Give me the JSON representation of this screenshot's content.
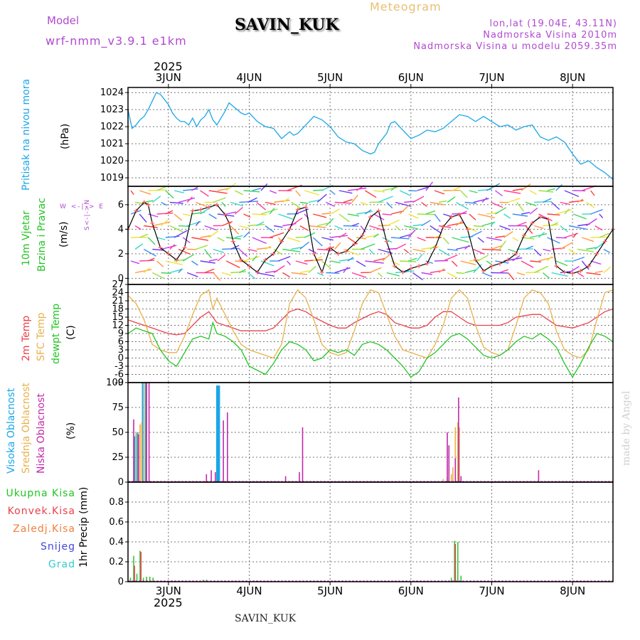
{
  "header": {
    "model_label": "Model",
    "model_name": "wrf-nmm_v3.9.1 e1km",
    "station": "SAVIN_KUK",
    "title": "Meteogram",
    "lonlat": "lon,lat (19.04E, 43.11N)",
    "elevation": "Nadmorska Visina 2010m",
    "model_elevation": "Nadmorska Visina u modelu 2059.35m",
    "year_top": "2025",
    "year_bottom": "2025",
    "footer_station": "SAVIN_KUK",
    "credit": "made by Angel"
  },
  "colors": {
    "pressure": "#1aa7e8",
    "temp2m": "#e8414a",
    "sfc_temp": "#e8b14a",
    "dewpt": "#22c422",
    "wind_speed": "#000000",
    "wind_dir": "#ff5a5a",
    "high_cloud": "#1aa7e8",
    "mid_cloud": "#e8b14a",
    "low_cloud": "#c02aa8",
    "total_precip": "#3cc23c",
    "conv_precip": "#e8414a",
    "freezing_precip": "#f0803c",
    "snow": "#4444dd",
    "hail": "#33cccc",
    "label_purple": "#b04ad0"
  },
  "panels": {
    "pressure": {
      "label": "Pritisak na nivou mora",
      "unit": "(hPa)"
    },
    "wind": {
      "label1": "10m Vjetar",
      "label2": "Brzina i Pravac",
      "unit": "(m/s)",
      "compass": "W <-|-> E",
      "compass_ns": "S<-|->N"
    },
    "temp": {
      "label1": "2m Temp",
      "label2": "SFC Temp",
      "label3": "dewpt Temp",
      "unit": "(C)"
    },
    "cloud": {
      "label1": "Visoka Oblacnost",
      "label2": "Srednja Oblacnost",
      "label3": "Niska Oblacnost",
      "unit": "(%)"
    },
    "precip": {
      "unit": "1hr Precip (mm)",
      "legend": [
        "Ukupna Kisa",
        "Konvek.Kisa",
        "Zaledj.Kisa",
        "Snijeg",
        "Grad"
      ]
    }
  },
  "chart_data": [
    {
      "type": "line",
      "title": "",
      "ylabel": "(hPa)",
      "x_unit": "day (June 2025)",
      "xlim": [
        2.5,
        8.5
      ],
      "x_ticks": [
        3,
        4,
        5,
        6,
        7,
        8
      ],
      "x_tick_labels": [
        "3JUN",
        "4JUN",
        "5JUN",
        "6JUN",
        "7JUN",
        "8JUN"
      ],
      "ylim": [
        1018.5,
        1024.3
      ],
      "y_ticks": [
        1019,
        1020,
        1021,
        1022,
        1023,
        1024
      ],
      "grid": true,
      "series": [
        {
          "name": "Pritisak na nivou mora",
          "x": [
            2.5,
            2.55,
            2.6,
            2.65,
            2.7,
            2.75,
            2.8,
            2.85,
            2.9,
            2.95,
            3.0,
            3.05,
            3.1,
            3.15,
            3.2,
            3.25,
            3.3,
            3.35,
            3.4,
            3.45,
            3.5,
            3.55,
            3.6,
            3.65,
            3.7,
            3.75,
            3.8,
            3.85,
            3.9,
            3.95,
            4.0,
            4.1,
            4.2,
            4.3,
            4.4,
            4.5,
            4.55,
            4.6,
            4.7,
            4.8,
            4.9,
            5.0,
            5.1,
            5.2,
            5.3,
            5.4,
            5.5,
            5.55,
            5.6,
            5.7,
            5.75,
            5.8,
            5.9,
            6.0,
            6.1,
            6.2,
            6.3,
            6.4,
            6.5,
            6.6,
            6.7,
            6.8,
            6.9,
            7.0,
            7.1,
            7.2,
            7.3,
            7.4,
            7.5,
            7.6,
            7.7,
            7.8,
            7.9,
            8.0,
            8.1,
            8.2,
            8.3,
            8.4,
            8.5
          ],
          "values": [
            1023.0,
            1021.9,
            1022.1,
            1022.4,
            1022.6,
            1023.0,
            1023.5,
            1024.0,
            1023.9,
            1023.6,
            1023.3,
            1022.8,
            1022.5,
            1022.3,
            1022.3,
            1022.1,
            1022.5,
            1022.0,
            1022.4,
            1022.6,
            1023.0,
            1022.4,
            1022.1,
            1022.5,
            1022.9,
            1023.4,
            1023.2,
            1023.0,
            1022.8,
            1022.7,
            1022.8,
            1022.3,
            1022.0,
            1021.9,
            1021.3,
            1021.7,
            1021.5,
            1021.6,
            1022.1,
            1022.6,
            1022.4,
            1022.0,
            1021.4,
            1021.1,
            1021.0,
            1020.6,
            1020.4,
            1020.5,
            1021.0,
            1021.6,
            1022.2,
            1022.3,
            1021.8,
            1021.3,
            1021.5,
            1021.8,
            1021.7,
            1021.9,
            1022.3,
            1022.7,
            1022.6,
            1022.3,
            1022.6,
            1022.3,
            1022.0,
            1022.1,
            1021.8,
            1022.0,
            1022.1,
            1021.4,
            1021.2,
            1021.4,
            1021.1,
            1020.4,
            1019.8,
            1020.0,
            1019.6,
            1019.3,
            1018.9
          ]
        }
      ]
    },
    {
      "type": "line",
      "title": "",
      "ylabel": "(m/s)",
      "x_unit": "day (June 2025)",
      "xlim": [
        2.5,
        8.5
      ],
      "ylim": [
        -0.5,
        7.5
      ],
      "y_ticks": [
        0,
        2,
        4,
        6
      ],
      "grid": true,
      "series": [
        {
          "name": "Brzina",
          "x": [
            2.5,
            2.6,
            2.7,
            2.75,
            2.8,
            2.9,
            3.0,
            3.1,
            3.2,
            3.3,
            3.4,
            3.5,
            3.6,
            3.7,
            3.75,
            3.8,
            3.9,
            4.0,
            4.1,
            4.2,
            4.3,
            4.4,
            4.5,
            4.6,
            4.7,
            4.8,
            4.9,
            5.0,
            5.1,
            5.2,
            5.3,
            5.4,
            5.5,
            5.6,
            5.7,
            5.8,
            5.9,
            6.0,
            6.1,
            6.2,
            6.3,
            6.4,
            6.5,
            6.6,
            6.7,
            6.8,
            6.9,
            7.0,
            7.1,
            7.2,
            7.3,
            7.4,
            7.5,
            7.6,
            7.7,
            7.8,
            7.9,
            8.0,
            8.1,
            8.2,
            8.3,
            8.4,
            8.5
          ],
          "values": [
            4.0,
            5.5,
            6.2,
            6.0,
            4.5,
            2.5,
            2.0,
            1.5,
            2.5,
            5.5,
            5.6,
            5.8,
            6.0,
            5.2,
            4.5,
            3.0,
            1.5,
            1.0,
            0.5,
            1.5,
            2.0,
            3.0,
            4.0,
            5.6,
            5.8,
            2.0,
            0.5,
            2.5,
            2.0,
            2.2,
            2.8,
            3.5,
            5.0,
            5.5,
            3.0,
            1.0,
            0.5,
            0.8,
            1.0,
            1.2,
            2.5,
            4.2,
            5.0,
            5.2,
            4.0,
            1.5,
            0.6,
            1.0,
            1.2,
            1.5,
            2.0,
            3.5,
            4.5,
            5.0,
            4.8,
            1.0,
            0.5,
            0.4,
            0.6,
            1.0,
            2.0,
            3.0,
            4.0
          ]
        }
      ]
    },
    {
      "type": "line",
      "title": "",
      "ylabel": "(C)",
      "x_unit": "day (June 2025)",
      "xlim": [
        2.5,
        8.5
      ],
      "ylim": [
        -9,
        27
      ],
      "y_ticks": [
        -9,
        -6,
        -3,
        0,
        3,
        6,
        9,
        12,
        15,
        18,
        21,
        24,
        27
      ],
      "grid": true,
      "series": [
        {
          "name": "2m Temp",
          "x": [
            2.5,
            2.6,
            2.7,
            2.8,
            2.9,
            3.0,
            3.1,
            3.2,
            3.3,
            3.4,
            3.5,
            3.55,
            3.6,
            3.7,
            3.8,
            3.9,
            4.0,
            4.2,
            4.3,
            4.4,
            4.5,
            4.6,
            4.7,
            4.8,
            5.0,
            5.1,
            5.2,
            5.3,
            5.5,
            5.6,
            5.7,
            5.8,
            6.0,
            6.1,
            6.2,
            6.3,
            6.4,
            6.5,
            6.6,
            6.7,
            6.8,
            7.0,
            7.1,
            7.2,
            7.3,
            7.5,
            7.6,
            7.7,
            7.8,
            8.0,
            8.1,
            8.2,
            8.3,
            8.4,
            8.5
          ],
          "values": [
            14,
            13,
            12,
            11,
            10,
            9,
            8.5,
            9,
            12,
            15,
            17,
            15,
            13,
            12,
            11,
            10,
            10,
            10,
            11,
            14,
            17,
            18,
            17,
            15,
            12,
            11,
            11,
            13,
            16,
            17,
            16,
            13,
            11,
            11,
            12,
            15,
            17,
            17,
            15,
            13,
            12,
            12,
            12,
            13,
            15,
            16,
            16,
            14,
            12,
            11,
            12,
            13,
            15,
            17,
            18
          ]
        },
        {
          "name": "SFC Temp",
          "x": [
            2.5,
            2.6,
            2.7,
            2.8,
            2.9,
            3.0,
            3.1,
            3.2,
            3.3,
            3.4,
            3.5,
            3.55,
            3.6,
            3.7,
            3.8,
            3.9,
            4.0,
            4.2,
            4.3,
            4.4,
            4.5,
            4.6,
            4.7,
            4.8,
            4.9,
            5.0,
            5.1,
            5.2,
            5.3,
            5.4,
            5.5,
            5.6,
            5.7,
            5.8,
            5.9,
            6.0,
            6.1,
            6.2,
            6.3,
            6.4,
            6.5,
            6.6,
            6.7,
            6.8,
            6.9,
            7.0,
            7.1,
            7.2,
            7.3,
            7.4,
            7.5,
            7.6,
            7.7,
            7.8,
            7.9,
            8.0,
            8.1,
            8.2,
            8.3,
            8.4,
            8.5
          ],
          "values": [
            23,
            20,
            14,
            5,
            3,
            2,
            2,
            8,
            16,
            23,
            25,
            18,
            22,
            16,
            10,
            5,
            3,
            1,
            0,
            5,
            20,
            25,
            22,
            14,
            5,
            2,
            1,
            2,
            10,
            20,
            25,
            24,
            16,
            8,
            3,
            2,
            1,
            0,
            5,
            12,
            22,
            25,
            22,
            12,
            4,
            2,
            1,
            3,
            12,
            22,
            25,
            24,
            20,
            10,
            3,
            1,
            0,
            3,
            14,
            24,
            25
          ]
        },
        {
          "name": "dewpt Temp",
          "x": [
            2.5,
            2.6,
            2.7,
            2.8,
            2.9,
            3.0,
            3.1,
            3.2,
            3.3,
            3.4,
            3.5,
            3.55,
            3.6,
            3.7,
            3.8,
            3.9,
            4.0,
            4.2,
            4.3,
            4.4,
            4.5,
            4.6,
            4.7,
            4.8,
            4.9,
            5.0,
            5.1,
            5.2,
            5.3,
            5.4,
            5.5,
            5.6,
            5.7,
            5.8,
            5.9,
            6.0,
            6.1,
            6.2,
            6.3,
            6.4,
            6.5,
            6.6,
            6.7,
            6.8,
            6.9,
            7.0,
            7.1,
            7.2,
            7.3,
            7.4,
            7.5,
            7.6,
            7.7,
            7.8,
            7.9,
            8.0,
            8.1,
            8.2,
            8.3,
            8.4,
            8.5
          ],
          "values": [
            9,
            11,
            10,
            9,
            3,
            -1,
            -3,
            2,
            7,
            8,
            7,
            13,
            9,
            8,
            6,
            3,
            -3,
            -6,
            -2,
            3,
            6,
            5,
            3,
            -1,
            0,
            3,
            2,
            3,
            1,
            5,
            6,
            5,
            3,
            0,
            -3,
            -7,
            -5,
            0,
            2,
            5,
            8,
            9,
            7,
            4,
            1,
            0,
            1,
            3,
            6,
            8,
            7,
            9,
            7,
            4,
            -2,
            -7,
            -2,
            4,
            9,
            8,
            6
          ]
        }
      ]
    },
    {
      "type": "bar",
      "title": "",
      "ylabel": "(%)",
      "x_unit": "day (June 2025)",
      "xlim": [
        2.5,
        8.5
      ],
      "ylim": [
        0,
        100
      ],
      "y_ticks": [
        0,
        25,
        50,
        75,
        100
      ],
      "grid": true,
      "series": [
        {
          "name": "Visoka Oblacnost",
          "x": [
            2.58,
            2.6,
            2.62,
            2.68,
            2.72,
            3.6,
            3.61,
            3.62,
            3.63
          ],
          "values": [
            46,
            48,
            50,
            100,
            100,
            97,
            97,
            97,
            97
          ]
        },
        {
          "name": "Srednja Oblacnost",
          "x": [
            2.6,
            2.65,
            2.67,
            2.7,
            6.4,
            6.45,
            6.5,
            6.52,
            6.55,
            6.58,
            6.6
          ],
          "values": [
            50,
            58,
            60,
            100,
            3,
            5,
            8,
            15,
            55,
            60,
            55
          ]
        },
        {
          "name": "Niska Oblacnost",
          "x": [
            2.57,
            2.63,
            2.73,
            2.76,
            3.47,
            3.53,
            3.58,
            3.68,
            3.73,
            4.45,
            4.62,
            4.66,
            6.45,
            6.47,
            6.55,
            6.59,
            6.62,
            7.58
          ],
          "values": [
            63,
            48,
            100,
            100,
            8,
            12,
            10,
            62,
            70,
            6,
            10,
            55,
            50,
            37,
            24,
            85,
            6,
            12
          ]
        }
      ]
    },
    {
      "type": "bar",
      "title": "",
      "ylabel": "1hr Precip (mm)",
      "x_unit": "day (June 2025)",
      "xlim": [
        2.5,
        8.5
      ],
      "ylim": [
        0,
        1.0
      ],
      "y_ticks": [
        0,
        0.2,
        0.4,
        0.6,
        0.8
      ],
      "grid": true,
      "series": [
        {
          "name": "Ukupna Kisa",
          "x": [
            2.53,
            2.57,
            2.61,
            2.65,
            2.69,
            2.73,
            2.77,
            2.81,
            3.43,
            3.47,
            3.52,
            6.5,
            6.54,
            6.58,
            6.62
          ],
          "values": [
            0.04,
            0.26,
            0.08,
            0.31,
            0.04,
            0.05,
            0.05,
            0.04,
            0.02,
            0.02,
            0.01,
            0.04,
            0.41,
            0.4,
            0.06
          ]
        },
        {
          "name": "Konvek.Kisa",
          "x": [
            2.58,
            2.66,
            6.55
          ],
          "values": [
            0.16,
            0.3,
            0.38
          ]
        },
        {
          "name": "Zaledj.Kisa",
          "x": [],
          "values": []
        },
        {
          "name": "Snijeg",
          "x": [],
          "values": []
        },
        {
          "name": "Grad",
          "x": [],
          "values": []
        }
      ]
    }
  ]
}
